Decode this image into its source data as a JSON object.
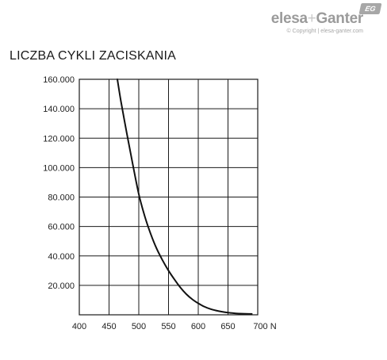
{
  "brand": {
    "logo_name": "elesa",
    "logo_plus": "+",
    "logo_partner": "Ganter",
    "badge": "EG",
    "copyright": "© Copyright | elesa-ganter.com"
  },
  "chart_data": {
    "type": "line",
    "title": "LICZBA CYKLI ZACISKANIA",
    "xlabel": "",
    "ylabel": "",
    "x_unit": "N",
    "xlim": [
      400,
      700
    ],
    "ylim": [
      0,
      160000
    ],
    "x_ticks": [
      400,
      450,
      500,
      550,
      600,
      650,
      700
    ],
    "x_tick_labels": [
      "400",
      "450",
      "500",
      "550",
      "600",
      "650",
      "700 N"
    ],
    "y_ticks": [
      20000,
      40000,
      60000,
      80000,
      100000,
      120000,
      140000,
      160000
    ],
    "y_tick_labels": [
      "20.000",
      "40.000",
      "60.000",
      "80.000",
      "100.000",
      "120.000",
      "140.000",
      "160.000"
    ],
    "grid": true,
    "series": [
      {
        "x": [
          464,
          470,
          480,
          490,
          500,
          510,
          520,
          530,
          540,
          550,
          560,
          570,
          580,
          590,
          600,
          610,
          620,
          630,
          640,
          650,
          660,
          670,
          680,
          690
        ],
        "y": [
          160000,
          145000,
          123000,
          102000,
          82000,
          67000,
          55000,
          45000,
          37000,
          30000,
          24000,
          18500,
          14000,
          10500,
          7800,
          5600,
          4000,
          2900,
          2100,
          1500,
          1100,
          800,
          650,
          600
        ]
      }
    ]
  }
}
